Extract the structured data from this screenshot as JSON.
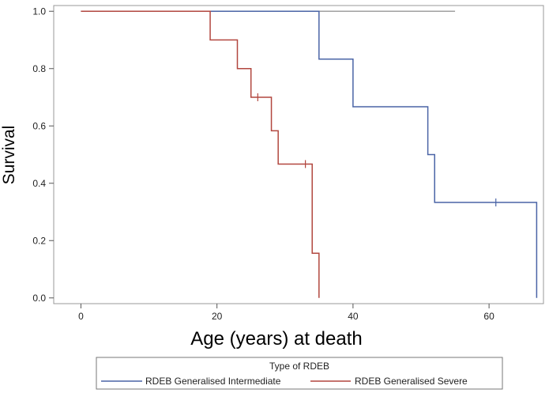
{
  "chart_data": {
    "type": "line",
    "step": true,
    "xlabel": "Age (years) at death",
    "ylabel": "Survival",
    "xlim": [
      -4,
      68
    ],
    "ylim": [
      -0.02,
      1.02
    ],
    "xticks": [
      0,
      20,
      40,
      60
    ],
    "yticks": [
      0.0,
      0.2,
      0.4,
      0.6,
      0.8,
      1.0
    ],
    "xtick_labels": [
      "0",
      "20",
      "40",
      "60"
    ],
    "ytick_labels": [
      "0.0",
      "0.2",
      "0.4",
      "0.6",
      "0.8",
      "1.0"
    ],
    "grid": false,
    "legend": {
      "title": "Type of RDEB",
      "position": "bottom"
    },
    "series": [
      {
        "name": "RDEB Generalised Intermediate",
        "color": "#4a64a6",
        "steps": [
          [
            0,
            1.0
          ],
          [
            35,
            0.833
          ],
          [
            40,
            0.667
          ],
          [
            51,
            0.5
          ],
          [
            52,
            0.333
          ],
          [
            67,
            0.0
          ]
        ],
        "censored": [
          [
            61,
            0.333
          ]
        ]
      },
      {
        "name": "RDEB Generalised Severe",
        "color": "#b2473f",
        "steps": [
          [
            0,
            1.0
          ],
          [
            19,
            0.9
          ],
          [
            23,
            0.8
          ],
          [
            25,
            0.7
          ],
          [
            28,
            0.583
          ],
          [
            29,
            0.467
          ],
          [
            34,
            0.156
          ],
          [
            35,
            0.0
          ]
        ],
        "censored": [
          [
            26,
            0.7
          ],
          [
            33,
            0.467
          ]
        ]
      }
    ],
    "top_line": {
      "color": "#a0a0a0",
      "y": 1.0,
      "x_end": 55
    }
  }
}
